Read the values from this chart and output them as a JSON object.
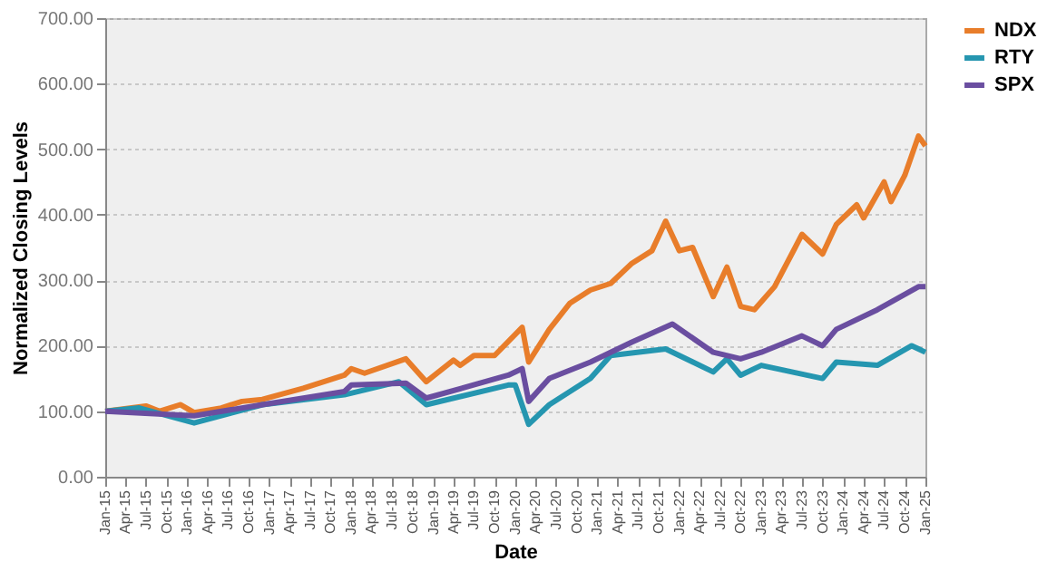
{
  "chart_data": {
    "type": "line",
    "xlabel": "Date",
    "ylabel": "Normalized Closing Levels",
    "ylim": [
      0,
      700
    ],
    "yticks": [
      {
        "value": 0,
        "label": "0.00"
      },
      {
        "value": 100,
        "label": "100.00"
      },
      {
        "value": 200,
        "label": "200.00"
      },
      {
        "value": 300,
        "label": "300.00"
      },
      {
        "value": 400,
        "label": "400.00"
      },
      {
        "value": 500,
        "label": "500.00"
      },
      {
        "value": 600,
        "label": "600.00"
      },
      {
        "value": 700,
        "label": "700.00"
      }
    ],
    "xlim": [
      "2015-01",
      "2025-01"
    ],
    "xticks": [
      {
        "value": "2015-01",
        "label": "Jan-15"
      },
      {
        "value": "2015-04",
        "label": "Apr-15"
      },
      {
        "value": "2015-07",
        "label": "Jul-15"
      },
      {
        "value": "2015-10",
        "label": "Oct-15"
      },
      {
        "value": "2016-01",
        "label": "Jan-16"
      },
      {
        "value": "2016-04",
        "label": "Apr-16"
      },
      {
        "value": "2016-07",
        "label": "Jul-16"
      },
      {
        "value": "2016-10",
        "label": "Oct-16"
      },
      {
        "value": "2017-01",
        "label": "Jan-17"
      },
      {
        "value": "2017-04",
        "label": "Apr-17"
      },
      {
        "value": "2017-07",
        "label": "Jul-17"
      },
      {
        "value": "2017-10",
        "label": "Oct-17"
      },
      {
        "value": "2018-01",
        "label": "Jan-18"
      },
      {
        "value": "2018-04",
        "label": "Apr-18"
      },
      {
        "value": "2018-07",
        "label": "Jul-18"
      },
      {
        "value": "2018-10",
        "label": "Oct-18"
      },
      {
        "value": "2019-01",
        "label": "Jan-19"
      },
      {
        "value": "2019-04",
        "label": "Apr-19"
      },
      {
        "value": "2019-07",
        "label": "Jul-19"
      },
      {
        "value": "2019-10",
        "label": "Oct-19"
      },
      {
        "value": "2020-01",
        "label": "Jan-20"
      },
      {
        "value": "2020-04",
        "label": "Apr-20"
      },
      {
        "value": "2020-07",
        "label": "Jul-20"
      },
      {
        "value": "2020-10",
        "label": "Oct-20"
      },
      {
        "value": "2021-01",
        "label": "Jan-21"
      },
      {
        "value": "2021-04",
        "label": "Apr-21"
      },
      {
        "value": "2021-07",
        "label": "Jul-21"
      },
      {
        "value": "2021-10",
        "label": "Oct-21"
      },
      {
        "value": "2022-01",
        "label": "Jan-22"
      },
      {
        "value": "2022-04",
        "label": "Apr-22"
      },
      {
        "value": "2022-07",
        "label": "Jul-22"
      },
      {
        "value": "2022-10",
        "label": "Oct-22"
      },
      {
        "value": "2023-01",
        "label": "Jan-23"
      },
      {
        "value": "2023-04",
        "label": "Apr-23"
      },
      {
        "value": "2023-07",
        "label": "Jul-23"
      },
      {
        "value": "2023-10",
        "label": "Oct-23"
      },
      {
        "value": "2024-01",
        "label": "Jan-24"
      },
      {
        "value": "2024-04",
        "label": "Apr-24"
      },
      {
        "value": "2024-07",
        "label": "Jul-24"
      },
      {
        "value": "2024-10",
        "label": "Oct-24"
      },
      {
        "value": "2025-01",
        "label": "Jan-25"
      }
    ],
    "grid": "y",
    "legend": "right",
    "marker": "none",
    "line_style": "solid",
    "series": [
      {
        "name": "NDX",
        "color": "#e87d2a",
        "x": [
          "2015-01",
          "2015-07",
          "2015-09",
          "2015-12",
          "2016-02",
          "2016-06",
          "2016-09",
          "2016-12",
          "2017-06",
          "2017-12",
          "2018-01",
          "2018-03",
          "2018-09",
          "2018-12",
          "2019-04",
          "2019-05",
          "2019-07",
          "2019-10",
          "2020-02",
          "2020-03",
          "2020-06",
          "2020-09",
          "2020-12",
          "2021-03",
          "2021-06",
          "2021-09",
          "2021-11",
          "2022-01",
          "2022-03",
          "2022-06",
          "2022-08",
          "2022-10",
          "2022-12",
          "2023-03",
          "2023-06",
          "2023-07",
          "2023-10",
          "2023-12",
          "2024-03",
          "2024-04",
          "2024-07",
          "2024-08",
          "2024-10",
          "2024-12",
          "2025-01"
        ],
        "values": [
          100,
          108,
          100,
          110,
          98,
          105,
          115,
          118,
          135,
          155,
          165,
          158,
          180,
          145,
          178,
          170,
          185,
          185,
          228,
          175,
          225,
          265,
          285,
          295,
          325,
          345,
          390,
          345,
          350,
          275,
          320,
          260,
          255,
          290,
          350,
          370,
          340,
          385,
          415,
          395,
          450,
          420,
          460,
          520,
          505
        ]
      },
      {
        "name": "RTY",
        "color": "#2596b0",
        "x": [
          "2015-01",
          "2015-06",
          "2016-02",
          "2016-12",
          "2017-12",
          "2018-08",
          "2018-12",
          "2019-12",
          "2020-01",
          "2020-03",
          "2020-06",
          "2020-12",
          "2021-03",
          "2021-11",
          "2022-06",
          "2022-08",
          "2022-10",
          "2023-01",
          "2023-10",
          "2023-12",
          "2024-06",
          "2024-11",
          "2025-01"
        ],
        "values": [
          100,
          105,
          82,
          110,
          125,
          145,
          110,
          140,
          140,
          80,
          110,
          150,
          185,
          195,
          160,
          180,
          155,
          170,
          150,
          175,
          170,
          200,
          190
        ]
      },
      {
        "name": "SPX",
        "color": "#6a4ea0",
        "x": [
          "2015-01",
          "2016-02",
          "2016-12",
          "2017-12",
          "2018-01",
          "2018-09",
          "2018-12",
          "2019-12",
          "2020-02",
          "2020-03",
          "2020-06",
          "2020-12",
          "2021-06",
          "2021-12",
          "2022-06",
          "2022-10",
          "2023-01",
          "2023-07",
          "2023-10",
          "2023-12",
          "2024-06",
          "2024-12",
          "2025-01"
        ],
        "values": [
          100,
          93,
          110,
          130,
          140,
          143,
          120,
          155,
          165,
          115,
          150,
          175,
          205,
          233,
          190,
          180,
          190,
          215,
          200,
          225,
          255,
          290,
          290
        ]
      }
    ]
  }
}
